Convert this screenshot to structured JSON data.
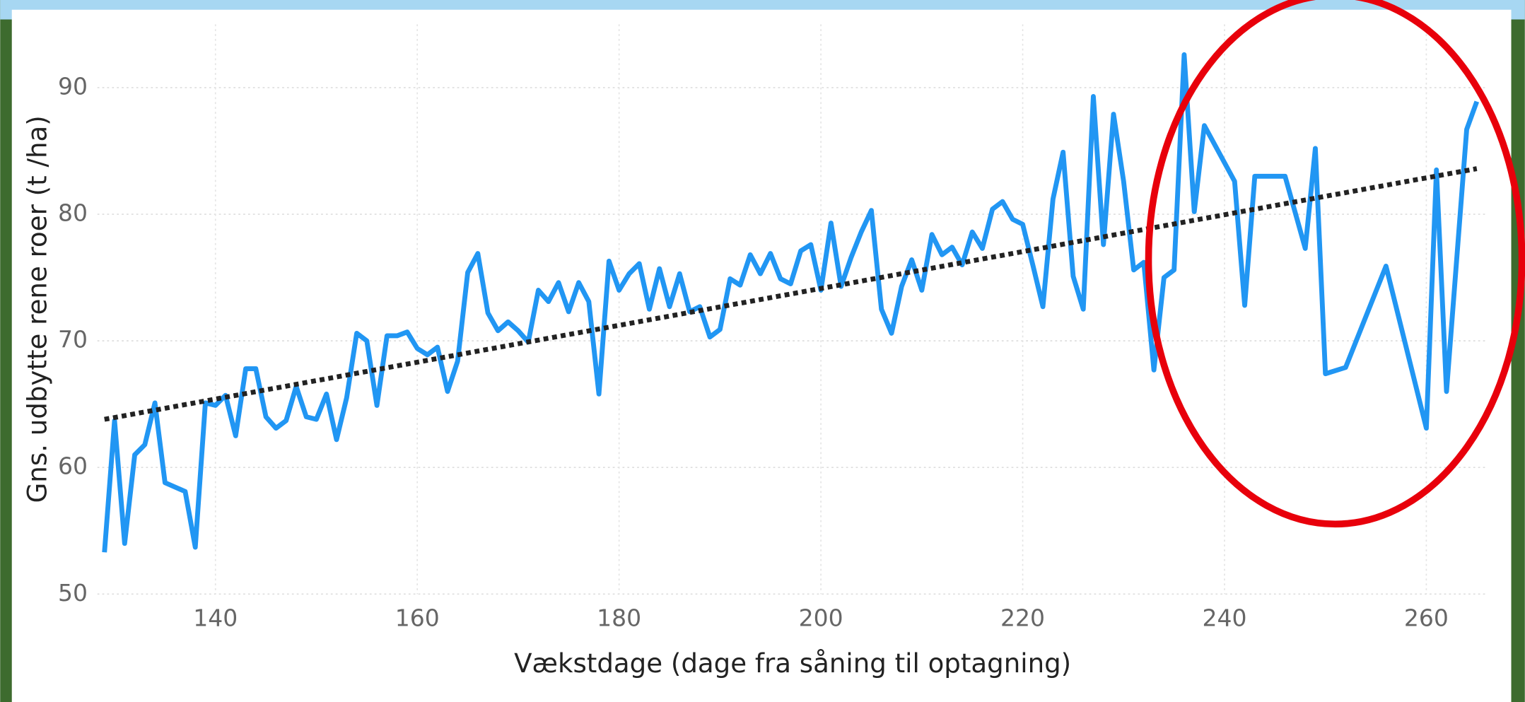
{
  "chart_data": {
    "type": "line",
    "x_label": "Vækstdage (dage fra såning til optagning)",
    "y_label": "Gns. udbytte rene roer (t /ha)",
    "x": [
      129,
      130,
      131,
      132,
      133,
      134,
      135,
      137,
      138,
      139,
      140,
      141,
      142,
      143,
      144,
      145,
      146,
      147,
      148,
      149,
      150,
      151,
      152,
      153,
      154,
      155,
      156,
      157,
      158,
      159,
      160,
      161,
      162,
      163,
      164,
      165,
      166,
      167,
      168,
      169,
      170,
      171,
      172,
      173,
      174,
      175,
      176,
      177,
      178,
      179,
      180,
      181,
      182,
      183,
      184,
      185,
      186,
      187,
      188,
      189,
      190,
      191,
      192,
      193,
      194,
      195,
      196,
      197,
      198,
      199,
      200,
      201,
      202,
      203,
      204,
      205,
      206,
      207,
      208,
      209,
      210,
      211,
      212,
      213,
      214,
      215,
      216,
      217,
      218,
      219,
      220,
      221,
      222,
      223,
      224,
      225,
      226,
      227,
      228,
      229,
      230,
      231,
      232,
      233,
      234,
      235,
      236,
      237,
      238,
      241,
      242,
      243,
      246,
      248,
      249,
      250,
      252,
      256,
      260,
      261,
      262,
      264,
      265
    ],
    "values": [
      53.3,
      63.7,
      54.0,
      61.0,
      61.8,
      65.1,
      58.8,
      58.1,
      53.7,
      65.1,
      64.9,
      65.7,
      62.5,
      67.8,
      67.8,
      64.0,
      63.1,
      63.7,
      66.4,
      64.0,
      63.8,
      65.8,
      62.2,
      65.5,
      70.6,
      70.0,
      64.9,
      70.4,
      70.4,
      70.7,
      69.4,
      68.9,
      69.5,
      66.0,
      68.4,
      75.4,
      76.9,
      72.2,
      70.8,
      71.5,
      70.8,
      69.9,
      74.0,
      73.1,
      74.6,
      72.3,
      74.6,
      73.1,
      65.8,
      76.3,
      74.0,
      75.3,
      76.1,
      72.5,
      75.7,
      72.7,
      75.3,
      72.3,
      72.7,
      70.3,
      70.9,
      74.9,
      74.4,
      76.8,
      75.3,
      76.9,
      74.9,
      74.5,
      77.1,
      77.6,
      74.0,
      79.3,
      74.3,
      76.6,
      78.6,
      80.3,
      72.5,
      70.6,
      74.3,
      76.4,
      74.0,
      78.4,
      76.8,
      77.4,
      76.0,
      78.6,
      77.3,
      80.4,
      81.0,
      79.6,
      79.2,
      76.0,
      72.7,
      81.2,
      84.9,
      75.1,
      72.5,
      89.3,
      77.6,
      87.9,
      82.6,
      75.6,
      76.2,
      67.7,
      75.0,
      75.6,
      92.6,
      80.2,
      87.0,
      82.6,
      72.8,
      83.0,
      83.0,
      77.3,
      85.2,
      67.4,
      67.9,
      75.9,
      63.1,
      83.5,
      66.0,
      86.7,
      88.9
    ],
    "color": "#2196f3",
    "trendline": {
      "x": [
        129,
        265
      ],
      "values": [
        63.8,
        83.6
      ],
      "color": "#222222"
    },
    "xlim": [
      128.3,
      266.1
    ],
    "ylim": [
      50,
      95
    ],
    "xticks": [
      140,
      160,
      180,
      200,
      220,
      240,
      260
    ],
    "yticks": [
      50,
      60,
      70,
      80,
      90
    ],
    "grid": true
  }
}
